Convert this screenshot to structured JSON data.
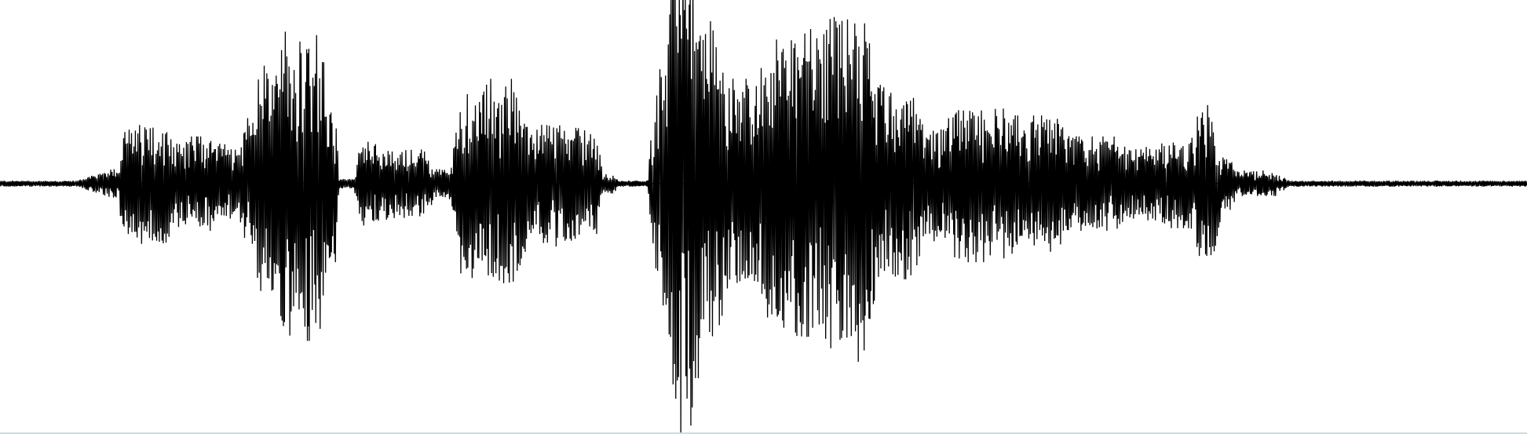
{
  "waveform": {
    "stroke_color": "#000000",
    "baseline_color": "#0b2438",
    "border_color": "#c9dde4",
    "background": "#ffffff",
    "segments": [
      {
        "start": 0.0,
        "end": 0.072,
        "amp": 0.012
      },
      {
        "start": 0.072,
        "end": 0.08,
        "amp": 0.06
      },
      {
        "start": 0.08,
        "end": 0.095,
        "amp": 0.22
      },
      {
        "start": 0.095,
        "end": 0.115,
        "amp": 0.24
      },
      {
        "start": 0.115,
        "end": 0.15,
        "amp": 0.18
      },
      {
        "start": 0.15,
        "end": 0.16,
        "amp": 0.14
      },
      {
        "start": 0.16,
        "end": 0.17,
        "amp": 0.25
      },
      {
        "start": 0.17,
        "end": 0.185,
        "amp": 0.45
      },
      {
        "start": 0.185,
        "end": 0.2,
        "amp": 0.58
      },
      {
        "start": 0.2,
        "end": 0.215,
        "amp": 0.6
      },
      {
        "start": 0.215,
        "end": 0.222,
        "amp": 0.3
      },
      {
        "start": 0.222,
        "end": 0.236,
        "amp": 0.02
      },
      {
        "start": 0.236,
        "end": 0.255,
        "amp": 0.16
      },
      {
        "start": 0.255,
        "end": 0.285,
        "amp": 0.14
      },
      {
        "start": 0.285,
        "end": 0.3,
        "amp": 0.06
      },
      {
        "start": 0.3,
        "end": 0.318,
        "amp": 0.36
      },
      {
        "start": 0.318,
        "end": 0.345,
        "amp": 0.4
      },
      {
        "start": 0.345,
        "end": 0.38,
        "amp": 0.24
      },
      {
        "start": 0.38,
        "end": 0.395,
        "amp": 0.22
      },
      {
        "start": 0.395,
        "end": 0.405,
        "amp": 0.04
      },
      {
        "start": 0.405,
        "end": 0.432,
        "amp": 0.012
      },
      {
        "start": 0.432,
        "end": 0.44,
        "amp": 0.55
      },
      {
        "start": 0.44,
        "end": 0.46,
        "amp": 0.98
      },
      {
        "start": 0.46,
        "end": 0.475,
        "amp": 0.62
      },
      {
        "start": 0.475,
        "end": 0.505,
        "amp": 0.4
      },
      {
        "start": 0.505,
        "end": 0.52,
        "amp": 0.55
      },
      {
        "start": 0.52,
        "end": 0.545,
        "amp": 0.62
      },
      {
        "start": 0.545,
        "end": 0.575,
        "amp": 0.68
      },
      {
        "start": 0.575,
        "end": 0.605,
        "amp": 0.4
      },
      {
        "start": 0.605,
        "end": 0.625,
        "amp": 0.22
      },
      {
        "start": 0.625,
        "end": 0.665,
        "amp": 0.3
      },
      {
        "start": 0.665,
        "end": 0.705,
        "amp": 0.26
      },
      {
        "start": 0.705,
        "end": 0.74,
        "amp": 0.18
      },
      {
        "start": 0.74,
        "end": 0.765,
        "amp": 0.14
      },
      {
        "start": 0.765,
        "end": 0.785,
        "amp": 0.17
      },
      {
        "start": 0.785,
        "end": 0.8,
        "amp": 0.3
      },
      {
        "start": 0.8,
        "end": 0.81,
        "amp": 0.1
      },
      {
        "start": 0.81,
        "end": 0.845,
        "amp": 0.05
      },
      {
        "start": 0.845,
        "end": 1.0,
        "amp": 0.012
      }
    ]
  }
}
